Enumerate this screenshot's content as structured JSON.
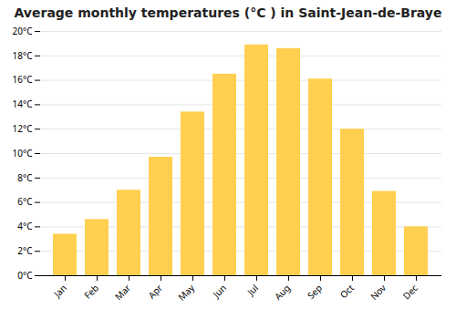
{
  "chart_data": {
    "type": "bar",
    "title": "Average monthly temperatures (°C ) in Saint-Jean-de-Braye",
    "categories": [
      "Jan",
      "Feb",
      "Mar",
      "Apr",
      "May",
      "Jun",
      "Jul",
      "Aug",
      "Sep",
      "Oct",
      "Nov",
      "Dec"
    ],
    "values": [
      3.4,
      4.6,
      7.0,
      9.7,
      13.4,
      16.5,
      18.9,
      18.6,
      16.1,
      12.0,
      6.9,
      4.0
    ],
    "color": "#FFD050",
    "ylim": [
      0,
      20
    ],
    "yticks": [
      {
        "value": 0,
        "label": "0°C"
      },
      {
        "value": 2,
        "label": "2°C"
      },
      {
        "value": 4,
        "label": "4°C"
      },
      {
        "value": 6,
        "label": "6°C"
      },
      {
        "value": 8,
        "label": "8°C"
      },
      {
        "value": 10,
        "label": "10°C"
      },
      {
        "value": 12,
        "label": "12°C"
      },
      {
        "value": 14,
        "label": "14°C"
      },
      {
        "value": 16,
        "label": "16°C"
      },
      {
        "value": 18,
        "label": "18°C"
      },
      {
        "value": 20,
        "label": "20°C"
      }
    ],
    "grid": true
  }
}
